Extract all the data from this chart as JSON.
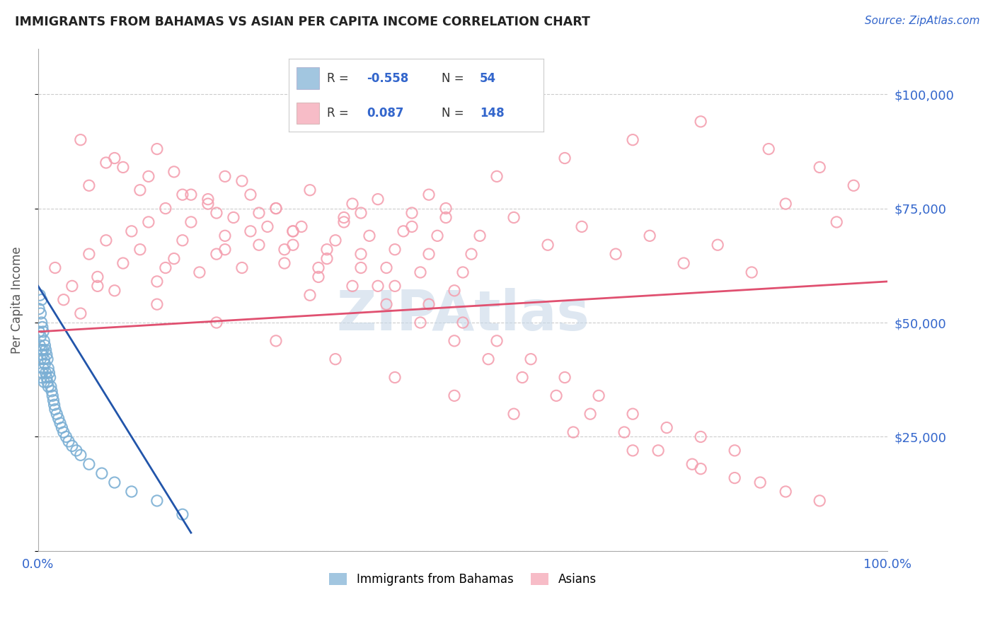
{
  "title": "IMMIGRANTS FROM BAHAMAS VS ASIAN PER CAPITA INCOME CORRELATION CHART",
  "source_text": "Source: ZipAtlas.com",
  "ylabel": "Per Capita Income",
  "color_blue": "#7BAFD4",
  "color_pink": "#F4A0B0",
  "color_line_blue": "#2255AA",
  "color_line_pink": "#E05070",
  "color_title": "#222222",
  "color_source": "#3366CC",
  "color_ytick_labels": "#3366CC",
  "color_xtick_labels": "#3366CC",
  "color_ylabel": "#555555",
  "grid_color": "#CCCCCC",
  "watermark_color": "#C8D8E8",
  "blue_scatter_x": [
    0.001,
    0.001,
    0.002,
    0.002,
    0.003,
    0.003,
    0.003,
    0.004,
    0.004,
    0.004,
    0.004,
    0.005,
    0.005,
    0.005,
    0.006,
    0.006,
    0.006,
    0.007,
    0.007,
    0.007,
    0.008,
    0.008,
    0.009,
    0.009,
    0.01,
    0.01,
    0.011,
    0.011,
    0.012,
    0.012,
    0.013,
    0.014,
    0.015,
    0.016,
    0.017,
    0.018,
    0.019,
    0.02,
    0.022,
    0.024,
    0.026,
    0.028,
    0.03,
    0.033,
    0.036,
    0.04,
    0.045,
    0.05,
    0.06,
    0.075,
    0.09,
    0.11,
    0.14,
    0.17
  ],
  "blue_scatter_y": [
    53000,
    48000,
    56000,
    45000,
    52000,
    47000,
    42000,
    55000,
    50000,
    44000,
    38000,
    49000,
    43000,
    39000,
    48000,
    44000,
    40000,
    46000,
    42000,
    37000,
    45000,
    41000,
    44000,
    39000,
    43000,
    38000,
    42000,
    37000,
    40000,
    36000,
    39000,
    38000,
    36000,
    35000,
    34000,
    33000,
    32000,
    31000,
    30000,
    29000,
    28000,
    27000,
    26000,
    25000,
    24000,
    23000,
    22000,
    21000,
    19000,
    17000,
    15000,
    13000,
    11000,
    8000
  ],
  "pink_scatter_x": [
    0.02,
    0.03,
    0.04,
    0.05,
    0.06,
    0.07,
    0.08,
    0.09,
    0.1,
    0.11,
    0.12,
    0.13,
    0.14,
    0.15,
    0.16,
    0.17,
    0.18,
    0.19,
    0.2,
    0.21,
    0.22,
    0.23,
    0.24,
    0.25,
    0.26,
    0.27,
    0.28,
    0.29,
    0.3,
    0.31,
    0.32,
    0.33,
    0.34,
    0.35,
    0.36,
    0.37,
    0.38,
    0.39,
    0.4,
    0.41,
    0.42,
    0.43,
    0.44,
    0.45,
    0.46,
    0.47,
    0.48,
    0.49,
    0.5,
    0.51,
    0.06,
    0.1,
    0.14,
    0.18,
    0.22,
    0.26,
    0.3,
    0.34,
    0.38,
    0.42,
    0.46,
    0.5,
    0.54,
    0.58,
    0.62,
    0.66,
    0.7,
    0.74,
    0.78,
    0.82,
    0.08,
    0.12,
    0.16,
    0.2,
    0.24,
    0.28,
    0.32,
    0.36,
    0.4,
    0.44,
    0.48,
    0.52,
    0.56,
    0.6,
    0.64,
    0.68,
    0.72,
    0.76,
    0.8,
    0.84,
    0.05,
    0.09,
    0.13,
    0.17,
    0.21,
    0.25,
    0.29,
    0.33,
    0.37,
    0.41,
    0.45,
    0.49,
    0.53,
    0.57,
    0.61,
    0.65,
    0.69,
    0.73,
    0.77,
    0.82,
    0.88,
    0.92,
    0.85,
    0.78,
    0.7,
    0.63,
    0.56,
    0.49,
    0.42,
    0.35,
    0.28,
    0.21,
    0.14,
    0.07,
    0.15,
    0.22,
    0.3,
    0.38,
    0.46,
    0.54,
    0.62,
    0.7,
    0.78,
    0.86,
    0.92,
    0.96,
    0.88,
    0.94
  ],
  "pink_scatter_y": [
    62000,
    55000,
    58000,
    52000,
    65000,
    60000,
    68000,
    57000,
    63000,
    70000,
    66000,
    72000,
    59000,
    75000,
    64000,
    68000,
    72000,
    61000,
    76000,
    65000,
    69000,
    73000,
    62000,
    78000,
    67000,
    71000,
    75000,
    63000,
    67000,
    71000,
    56000,
    60000,
    64000,
    68000,
    72000,
    76000,
    65000,
    69000,
    58000,
    62000,
    66000,
    70000,
    74000,
    61000,
    65000,
    69000,
    73000,
    57000,
    61000,
    65000,
    80000,
    84000,
    88000,
    78000,
    82000,
    74000,
    70000,
    66000,
    62000,
    58000,
    54000,
    50000,
    46000,
    42000,
    38000,
    34000,
    30000,
    27000,
    25000,
    22000,
    85000,
    79000,
    83000,
    77000,
    81000,
    75000,
    79000,
    73000,
    77000,
    71000,
    75000,
    69000,
    73000,
    67000,
    71000,
    65000,
    69000,
    63000,
    67000,
    61000,
    90000,
    86000,
    82000,
    78000,
    74000,
    70000,
    66000,
    62000,
    58000,
    54000,
    50000,
    46000,
    42000,
    38000,
    34000,
    30000,
    26000,
    22000,
    19000,
    16000,
    13000,
    11000,
    15000,
    18000,
    22000,
    26000,
    30000,
    34000,
    38000,
    42000,
    46000,
    50000,
    54000,
    58000,
    62000,
    66000,
    70000,
    74000,
    78000,
    82000,
    86000,
    90000,
    94000,
    88000,
    84000,
    80000,
    76000,
    72000
  ],
  "blue_line_x": [
    0.0,
    0.18
  ],
  "blue_line_y": [
    58000,
    4000
  ],
  "pink_line_x": [
    0.0,
    1.0
  ],
  "pink_line_y": [
    48000,
    59000
  ],
  "xlim": [
    0.0,
    1.0
  ],
  "ylim": [
    0,
    110000
  ],
  "yticks": [
    0,
    25000,
    50000,
    75000,
    100000
  ],
  "ytick_labels": [
    "",
    "$25,000",
    "$50,000",
    "$75,000",
    "$100,000"
  ],
  "xtick_positions": [
    0.0,
    1.0
  ],
  "xtick_labels": [
    "0.0%",
    "100.0%"
  ]
}
